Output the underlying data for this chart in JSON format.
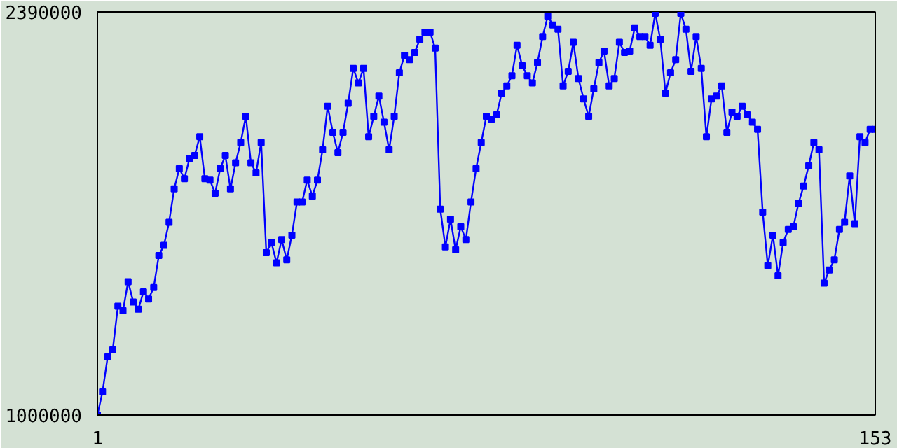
{
  "chart_data": {
    "type": "line",
    "x": [
      1,
      2,
      3,
      4,
      5,
      6,
      7,
      8,
      9,
      10,
      11,
      12,
      13,
      14,
      15,
      16,
      17,
      18,
      19,
      20,
      21,
      22,
      23,
      24,
      25,
      26,
      27,
      28,
      29,
      30,
      31,
      32,
      33,
      34,
      35,
      36,
      37,
      38,
      39,
      40,
      41,
      42,
      43,
      44,
      45,
      46,
      47,
      48,
      49,
      50,
      51,
      52,
      53,
      54,
      55,
      56,
      57,
      58,
      59,
      60,
      61,
      62,
      63,
      64,
      65,
      66,
      67,
      68,
      69,
      70,
      71,
      72,
      73,
      74,
      75,
      76,
      77,
      78,
      79,
      80,
      81,
      82,
      83,
      84,
      85,
      86,
      87,
      88,
      89,
      90,
      91,
      92,
      93,
      94,
      95,
      96,
      97,
      98,
      99,
      100,
      101,
      102,
      103,
      104,
      105,
      106,
      107,
      108,
      109,
      110,
      111,
      112,
      113,
      114,
      115,
      116,
      117,
      118,
      119,
      120,
      121,
      122,
      123,
      124,
      125,
      126,
      127,
      128,
      129,
      130,
      131,
      132,
      133,
      134,
      135,
      136,
      137,
      138,
      139,
      140,
      141,
      142,
      143,
      144,
      145,
      146,
      147,
      148,
      149,
      150,
      151,
      152,
      153
    ],
    "series": [
      {
        "color": "#0000ff",
        "values": [
          1000000,
          1080000,
          1200000,
          1225000,
          1375000,
          1360000,
          1460000,
          1390000,
          1365000,
          1425000,
          1400000,
          1440000,
          1550000,
          1585000,
          1665000,
          1780000,
          1850000,
          1815000,
          1885000,
          1895000,
          1960000,
          1815000,
          1810000,
          1765000,
          1850000,
          1895000,
          1780000,
          1870000,
          1940000,
          2030000,
          1870000,
          1835000,
          1940000,
          1560000,
          1595000,
          1525000,
          1605000,
          1535000,
          1620000,
          1735000,
          1735000,
          1810000,
          1755000,
          1810000,
          1915000,
          2065000,
          1975000,
          1905000,
          1975000,
          2075000,
          2195000,
          2145000,
          2195000,
          1960000,
          2030000,
          2100000,
          2010000,
          1915000,
          2030000,
          2180000,
          2240000,
          2225000,
          2250000,
          2295000,
          2320000,
          2320000,
          2265000,
          1710000,
          1580000,
          1675000,
          1570000,
          1650000,
          1605000,
          1735000,
          1850000,
          1940000,
          2030000,
          2020000,
          2035000,
          2110000,
          2135000,
          2170000,
          2275000,
          2205000,
          2170000,
          2145000,
          2215000,
          2305000,
          2375000,
          2345000,
          2330000,
          2135000,
          2185000,
          2285000,
          2160000,
          2090000,
          2030000,
          2125000,
          2215000,
          2255000,
          2135000,
          2160000,
          2285000,
          2250000,
          2255000,
          2335000,
          2305000,
          2305000,
          2275000,
          2385000,
          2295000,
          2110000,
          2180000,
          2225000,
          2385000,
          2330000,
          2185000,
          2305000,
          2195000,
          1960000,
          2090000,
          2100000,
          2135000,
          1975000,
          2045000,
          2030000,
          2065000,
          2035000,
          2010000,
          1985000,
          1700000,
          1515000,
          1620000,
          1480000,
          1595000,
          1640000,
          1650000,
          1730000,
          1790000,
          1860000,
          1940000,
          1915000,
          1455000,
          1500000,
          1535000,
          1640000,
          1665000,
          1825000,
          1660000,
          1960000,
          1940000,
          1985000,
          1985000
        ]
      }
    ],
    "xlim": [
      1,
      153
    ],
    "ylim": [
      1000000,
      2390000
    ],
    "xticks": [
      1,
      153
    ],
    "yticks": [
      1000000,
      2390000
    ],
    "marker": "square",
    "line_style": "solid"
  }
}
